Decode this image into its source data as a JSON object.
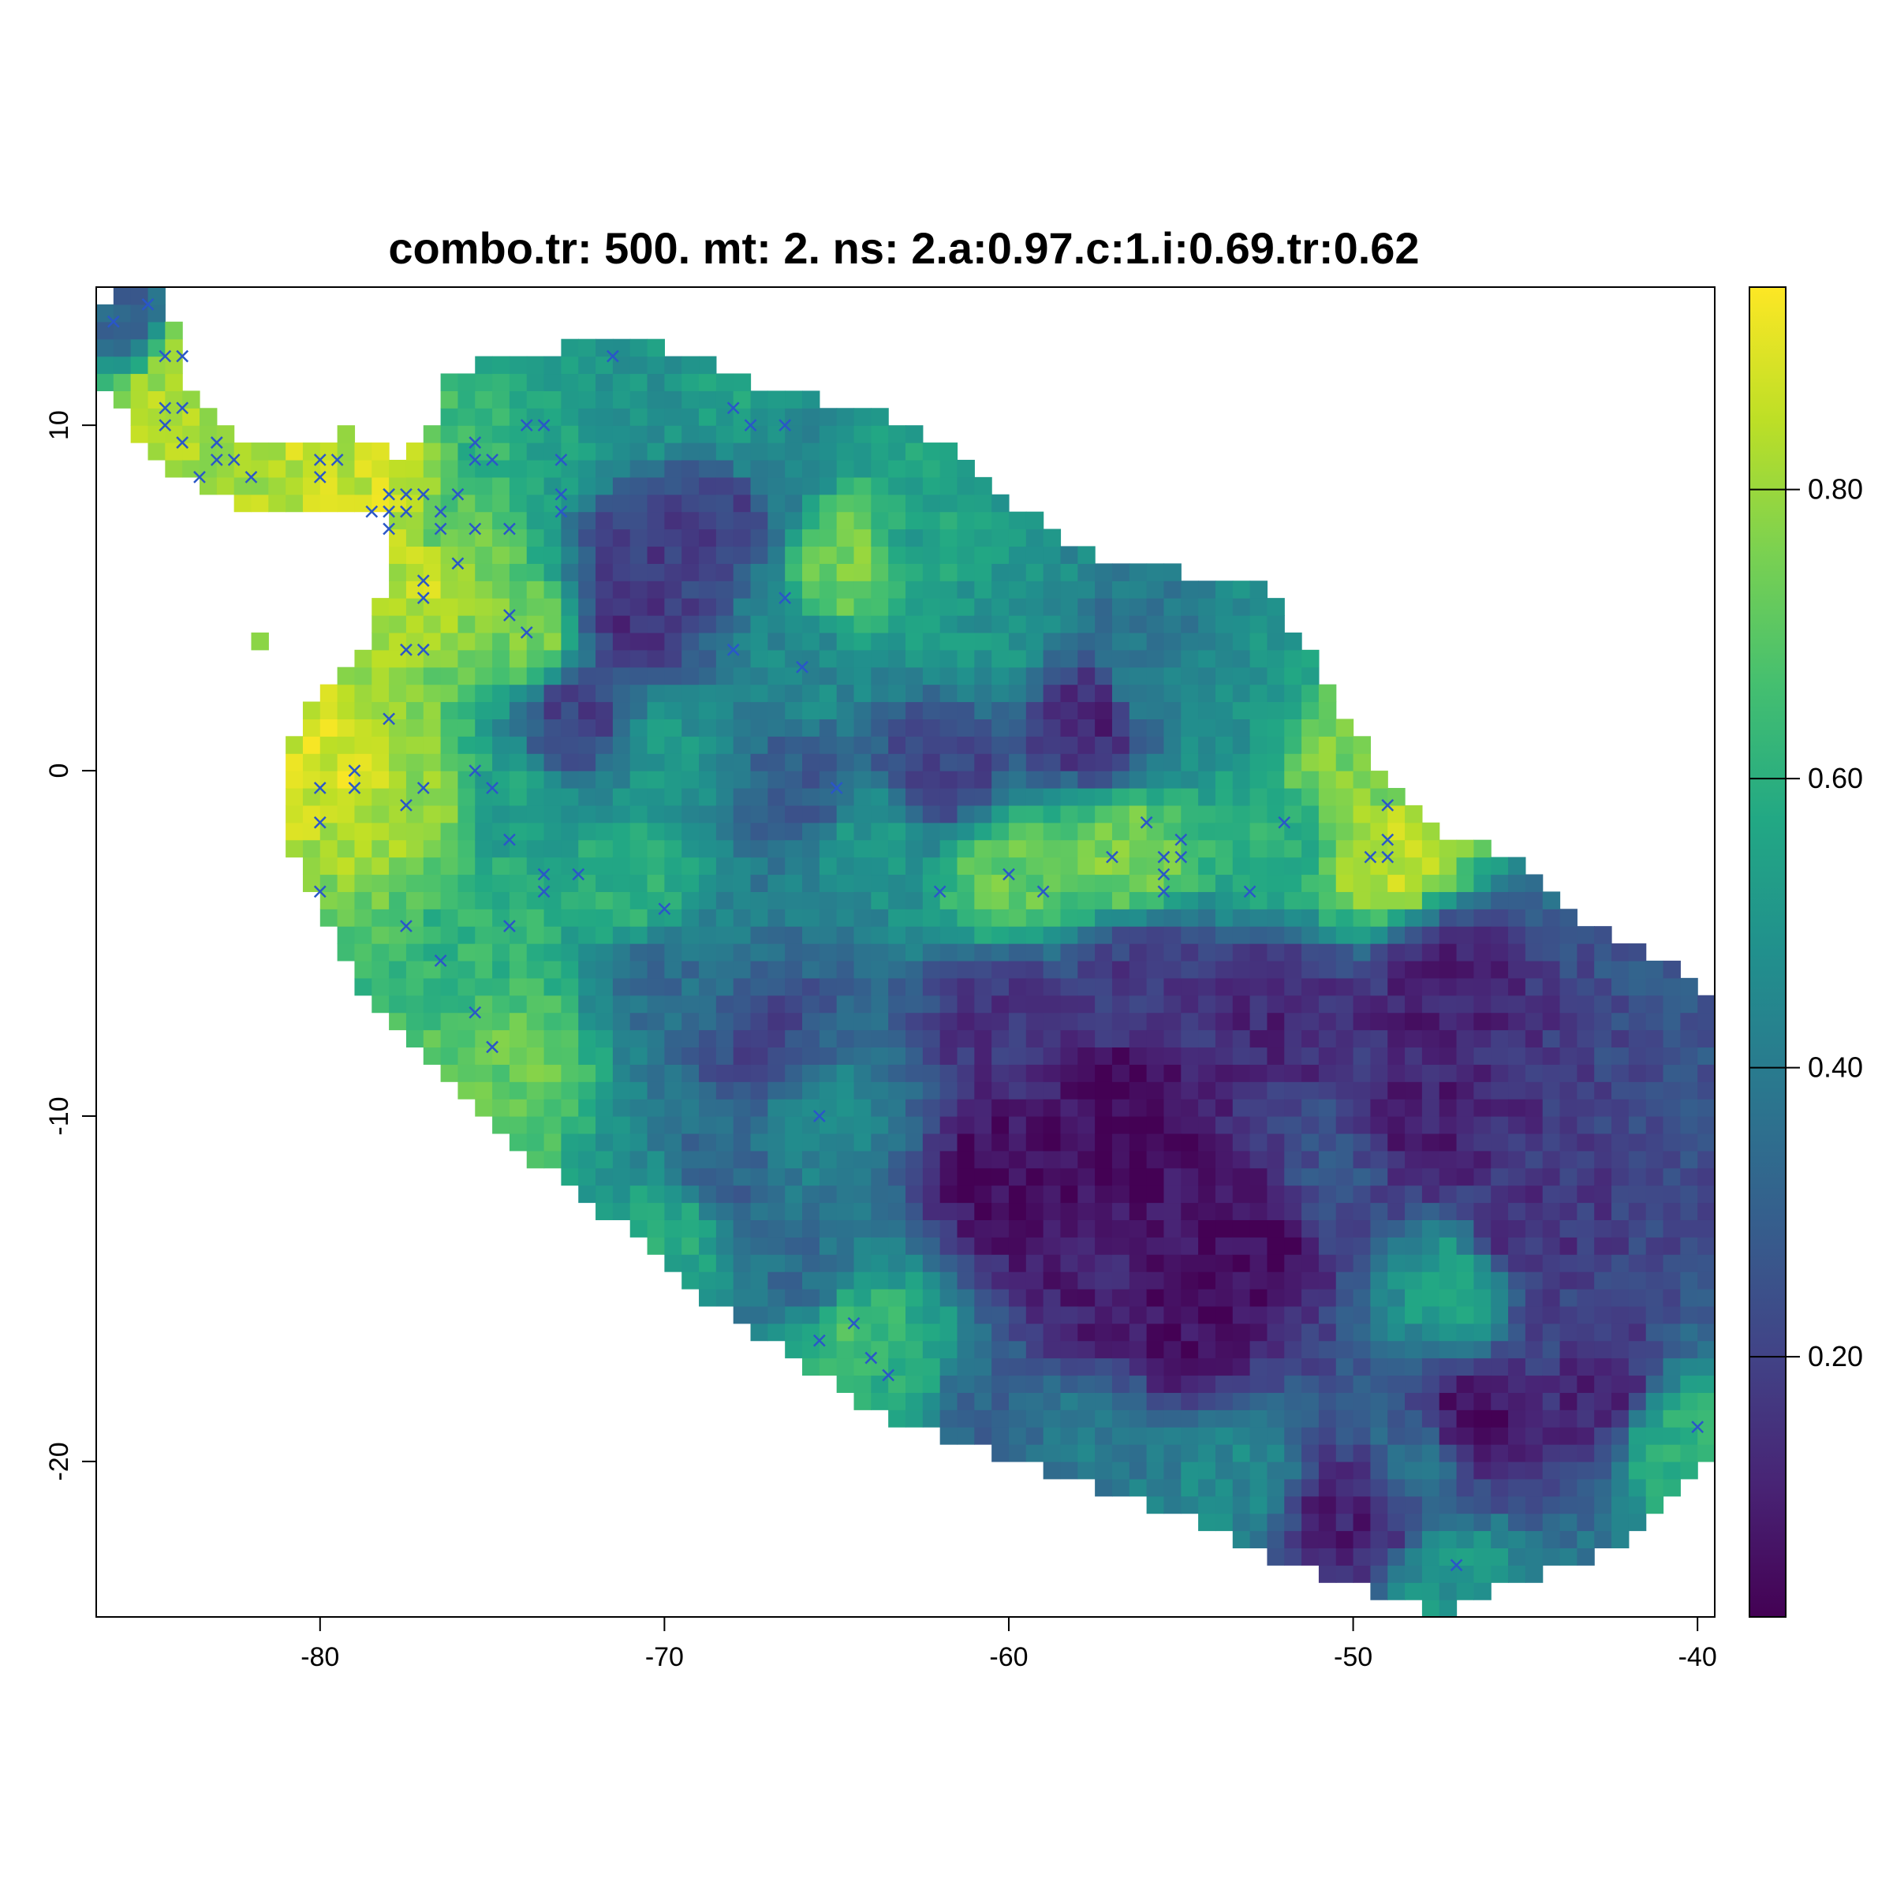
{
  "chart_data": {
    "type": "heatmap",
    "title": "combo.tr: 500. mt: 2. ns: 2.a:0.97.c:1.i:0.69.tr:0.62",
    "xlabel": "",
    "ylabel": "",
    "xlim": [
      -86.5,
      -39.5
    ],
    "ylim": [
      -24.5,
      14.0
    ],
    "x_ticks": [
      -80,
      -70,
      -60,
      -50,
      -40
    ],
    "x_tick_labels": [
      "-80",
      "-70",
      "-60",
      "-50",
      "-40"
    ],
    "y_ticks": [
      -20,
      -10,
      0,
      10
    ],
    "y_tick_labels": [
      "-20",
      "-10",
      "0",
      "10"
    ],
    "grid": false,
    "cell_size_degrees": 0.5,
    "colorbar": {
      "range": [
        0.02,
        0.94
      ],
      "ticks": [
        0.2,
        0.4,
        0.6,
        0.8
      ],
      "tick_labels": [
        "0.20",
        "0.40",
        "0.60",
        "0.80"
      ],
      "palette": [
        "#440154",
        "#482475",
        "#414487",
        "#355f8d",
        "#2a788e",
        "#21908d",
        "#22a884",
        "#44bf70",
        "#7ad151",
        "#bddf26",
        "#fde725"
      ],
      "placement": "right"
    },
    "marker_style": {
      "symbol": "x",
      "color": "#2a57c8"
    },
    "value_anchors": [
      {
        "lon": -84.5,
        "lat": 10.5,
        "value": 0.85
      },
      {
        "lon": -84.0,
        "lat": 12.0,
        "value": 0.8
      },
      {
        "lon": -85.5,
        "lat": 13.0,
        "value": 0.3
      },
      {
        "lon": -82.5,
        "lat": 9.0,
        "value": 0.82
      },
      {
        "lon": -80.5,
        "lat": 9.0,
        "value": 0.85
      },
      {
        "lon": -77.5,
        "lat": 8.0,
        "value": 0.88
      },
      {
        "lon": -77.0,
        "lat": 5.5,
        "value": 0.85
      },
      {
        "lon": -79.0,
        "lat": 0.0,
        "value": 0.88
      },
      {
        "lon": -77.5,
        "lat": -1.0,
        "value": 0.8
      },
      {
        "lon": -76.5,
        "lat": 7.5,
        "value": 0.7
      },
      {
        "lon": -74.0,
        "lat": 4.0,
        "value": 0.75
      },
      {
        "lon": -75.0,
        "lat": 9.5,
        "value": 0.62
      },
      {
        "lon": -73.5,
        "lat": 10.0,
        "value": 0.55
      },
      {
        "lon": -71.0,
        "lat": 10.5,
        "value": 0.5
      },
      {
        "lon": -68.0,
        "lat": 10.5,
        "value": 0.55
      },
      {
        "lon": -67.0,
        "lat": 9.5,
        "value": 0.45
      },
      {
        "lon": -70.5,
        "lat": 6.5,
        "value": 0.18
      },
      {
        "lon": -71.0,
        "lat": 4.5,
        "value": 0.15
      },
      {
        "lon": -68.5,
        "lat": 7.5,
        "value": 0.2
      },
      {
        "lon": -64.5,
        "lat": 6.0,
        "value": 0.75
      },
      {
        "lon": -62.5,
        "lat": 6.5,
        "value": 0.55
      },
      {
        "lon": -66.0,
        "lat": 3.0,
        "value": 0.45
      },
      {
        "lon": -60.5,
        "lat": 4.0,
        "value": 0.5
      },
      {
        "lon": -57.5,
        "lat": 1.5,
        "value": 0.12
      },
      {
        "lon": -56.0,
        "lat": 2.5,
        "value": 0.4
      },
      {
        "lon": -53.5,
        "lat": 1.5,
        "value": 0.5
      },
      {
        "lon": -50.5,
        "lat": 0.0,
        "value": 0.75
      },
      {
        "lon": -49.0,
        "lat": -2.5,
        "value": 0.85
      },
      {
        "lon": -52.0,
        "lat": -2.0,
        "value": 0.6
      },
      {
        "lon": -56.5,
        "lat": -2.5,
        "value": 0.75
      },
      {
        "lon": -60.0,
        "lat": -3.0,
        "value": 0.72
      },
      {
        "lon": -64.0,
        "lat": -2.0,
        "value": 0.5
      },
      {
        "lon": -62.0,
        "lat": 0.0,
        "value": 0.2
      },
      {
        "lon": -66.0,
        "lat": -0.5,
        "value": 0.28
      },
      {
        "lon": -70.0,
        "lat": 0.5,
        "value": 0.5
      },
      {
        "lon": -72.5,
        "lat": 1.5,
        "value": 0.2
      },
      {
        "lon": -74.5,
        "lat": -1.0,
        "value": 0.55
      },
      {
        "lon": -71.0,
        "lat": -3.5,
        "value": 0.6
      },
      {
        "lon": -75.5,
        "lat": -5.0,
        "value": 0.62
      },
      {
        "lon": -74.5,
        "lat": -8.5,
        "value": 0.72
      },
      {
        "lon": -70.0,
        "lat": -6.0,
        "value": 0.35
      },
      {
        "lon": -67.0,
        "lat": -8.0,
        "value": 0.22
      },
      {
        "lon": -65.5,
        "lat": -10.0,
        "value": 0.45
      },
      {
        "lon": -68.5,
        "lat": -12.0,
        "value": 0.3
      },
      {
        "lon": -69.5,
        "lat": -13.0,
        "value": 0.58
      },
      {
        "lon": -66.0,
        "lat": -14.5,
        "value": 0.35
      },
      {
        "lon": -64.5,
        "lat": -16.5,
        "value": 0.65
      },
      {
        "lon": -63.0,
        "lat": -17.5,
        "value": 0.6
      },
      {
        "lon": -60.0,
        "lat": -12.0,
        "value": 0.04
      },
      {
        "lon": -56.5,
        "lat": -10.0,
        "value": 0.03
      },
      {
        "lon": -53.0,
        "lat": -13.5,
        "value": 0.04
      },
      {
        "lon": -55.0,
        "lat": -16.0,
        "value": 0.06
      },
      {
        "lon": -60.0,
        "lat": -7.0,
        "value": 0.15
      },
      {
        "lon": -56.0,
        "lat": -6.0,
        "value": 0.18
      },
      {
        "lon": -52.0,
        "lat": -7.0,
        "value": 0.12
      },
      {
        "lon": -47.5,
        "lat": -6.0,
        "value": 0.1
      },
      {
        "lon": -50.5,
        "lat": -11.5,
        "value": 0.25
      },
      {
        "lon": -48.0,
        "lat": -10.5,
        "value": 0.1
      },
      {
        "lon": -47.0,
        "lat": -15.0,
        "value": 0.55
      },
      {
        "lon": -45.0,
        "lat": -13.5,
        "value": 0.15
      },
      {
        "lon": -44.0,
        "lat": -16.0,
        "value": 0.2
      },
      {
        "lon": -43.0,
        "lat": -18.0,
        "value": 0.12
      },
      {
        "lon": -40.5,
        "lat": -19.5,
        "value": 0.6
      },
      {
        "lon": -46.5,
        "lat": -19.0,
        "value": 0.05
      },
      {
        "lon": -48.0,
        "lat": -20.0,
        "value": 0.35
      },
      {
        "lon": -50.0,
        "lat": -21.5,
        "value": 0.1
      },
      {
        "lon": -47.0,
        "lat": -23.5,
        "value": 0.5
      },
      {
        "lon": -53.5,
        "lat": -20.5,
        "value": 0.45
      },
      {
        "lon": -57.5,
        "lat": -19.5,
        "value": 0.4
      },
      {
        "lon": -61.0,
        "lat": -18.5,
        "value": 0.3
      },
      {
        "lon": -58.0,
        "lat": -15.0,
        "value": 0.1
      }
    ],
    "markers": [
      {
        "lon": -86.0,
        "lat": 13.0
      },
      {
        "lon": -85.0,
        "lat": 13.5
      },
      {
        "lon": -84.5,
        "lat": 12.0
      },
      {
        "lon": -84.0,
        "lat": 12.0
      },
      {
        "lon": -84.5,
        "lat": 10.5
      },
      {
        "lon": -84.0,
        "lat": 10.5
      },
      {
        "lon": -84.5,
        "lat": 10.0
      },
      {
        "lon": -84.0,
        "lat": 9.5
      },
      {
        "lon": -83.0,
        "lat": 9.5
      },
      {
        "lon": -83.0,
        "lat": 9.0
      },
      {
        "lon": -82.5,
        "lat": 9.0
      },
      {
        "lon": -83.5,
        "lat": 8.5
      },
      {
        "lon": -82.0,
        "lat": 8.5
      },
      {
        "lon": -80.0,
        "lat": 9.0
      },
      {
        "lon": -79.5,
        "lat": 9.0
      },
      {
        "lon": -80.0,
        "lat": 8.5
      },
      {
        "lon": -78.5,
        "lat": 7.5
      },
      {
        "lon": -78.0,
        "lat": 7.5
      },
      {
        "lon": -77.5,
        "lat": 7.5
      },
      {
        "lon": -78.0,
        "lat": 8.0
      },
      {
        "lon": -77.5,
        "lat": 8.0
      },
      {
        "lon": -77.0,
        "lat": 8.0
      },
      {
        "lon": -78.0,
        "lat": 7.0
      },
      {
        "lon": -76.5,
        "lat": 7.5
      },
      {
        "lon": -76.0,
        "lat": 8.0
      },
      {
        "lon": -76.5,
        "lat": 7.0
      },
      {
        "lon": -75.5,
        "lat": 7.0
      },
      {
        "lon": -74.5,
        "lat": 7.0
      },
      {
        "lon": -73.0,
        "lat": 7.5
      },
      {
        "lon": -73.0,
        "lat": 8.0
      },
      {
        "lon": -75.5,
        "lat": 9.5
      },
      {
        "lon": -75.5,
        "lat": 9.0
      },
      {
        "lon": -75.0,
        "lat": 9.0
      },
      {
        "lon": -74.0,
        "lat": 10.0
      },
      {
        "lon": -73.5,
        "lat": 10.0
      },
      {
        "lon": -73.0,
        "lat": 9.0
      },
      {
        "lon": -71.5,
        "lat": 12.0
      },
      {
        "lon": -68.0,
        "lat": 10.5
      },
      {
        "lon": -67.5,
        "lat": 10.0
      },
      {
        "lon": -66.5,
        "lat": 10.0
      },
      {
        "lon": -76.0,
        "lat": 6.0
      },
      {
        "lon": -77.0,
        "lat": 5.5
      },
      {
        "lon": -77.0,
        "lat": 5.0
      },
      {
        "lon": -74.5,
        "lat": 4.5
      },
      {
        "lon": -74.0,
        "lat": 4.0
      },
      {
        "lon": -77.0,
        "lat": 3.5
      },
      {
        "lon": -77.5,
        "lat": 3.5
      },
      {
        "lon": -78.0,
        "lat": 1.5
      },
      {
        "lon": -79.0,
        "lat": 0.0
      },
      {
        "lon": -79.0,
        "lat": -0.5
      },
      {
        "lon": -80.0,
        "lat": -0.5
      },
      {
        "lon": -77.5,
        "lat": -1.0
      },
      {
        "lon": -77.0,
        "lat": -0.5
      },
      {
        "lon": -80.0,
        "lat": -1.5
      },
      {
        "lon": -75.5,
        "lat": 0.0
      },
      {
        "lon": -75.0,
        "lat": -0.5
      },
      {
        "lon": -74.5,
        "lat": -2.0
      },
      {
        "lon": -80.0,
        "lat": -3.5
      },
      {
        "lon": -73.5,
        "lat": -3.0
      },
      {
        "lon": -73.5,
        "lat": -3.5
      },
      {
        "lon": -72.5,
        "lat": -3.0
      },
      {
        "lon": -77.5,
        "lat": -4.5
      },
      {
        "lon": -74.5,
        "lat": -4.5
      },
      {
        "lon": -76.5,
        "lat": -5.5
      },
      {
        "lon": -75.5,
        "lat": -7.0
      },
      {
        "lon": -75.0,
        "lat": -8.0
      },
      {
        "lon": -70.0,
        "lat": -4.0
      },
      {
        "lon": -68.0,
        "lat": 3.5
      },
      {
        "lon": -66.0,
        "lat": 3.0
      },
      {
        "lon": -66.5,
        "lat": 5.0
      },
      {
        "lon": -65.0,
        "lat": -0.5
      },
      {
        "lon": -62.0,
        "lat": -3.5
      },
      {
        "lon": -60.0,
        "lat": -3.0
      },
      {
        "lon": -59.0,
        "lat": -3.5
      },
      {
        "lon": -57.0,
        "lat": -2.5
      },
      {
        "lon": -56.0,
        "lat": -1.5
      },
      {
        "lon": -55.0,
        "lat": -2.0
      },
      {
        "lon": -55.0,
        "lat": -2.5
      },
      {
        "lon": -55.5,
        "lat": -2.5
      },
      {
        "lon": -55.5,
        "lat": -3.0
      },
      {
        "lon": -55.5,
        "lat": -3.5
      },
      {
        "lon": -52.0,
        "lat": -1.5
      },
      {
        "lon": -53.0,
        "lat": -3.5
      },
      {
        "lon": -49.0,
        "lat": -1.0
      },
      {
        "lon": -49.0,
        "lat": -2.0
      },
      {
        "lon": -49.5,
        "lat": -2.5
      },
      {
        "lon": -49.0,
        "lat": -2.5
      },
      {
        "lon": -65.5,
        "lat": -10.0
      },
      {
        "lon": -64.5,
        "lat": -16.0
      },
      {
        "lon": -65.5,
        "lat": -16.5
      },
      {
        "lon": -64.0,
        "lat": -17.0
      },
      {
        "lon": -63.5,
        "lat": -17.5
      },
      {
        "lon": -40.0,
        "lat": -19.0
      },
      {
        "lon": -47.0,
        "lat": -23.0
      }
    ]
  }
}
